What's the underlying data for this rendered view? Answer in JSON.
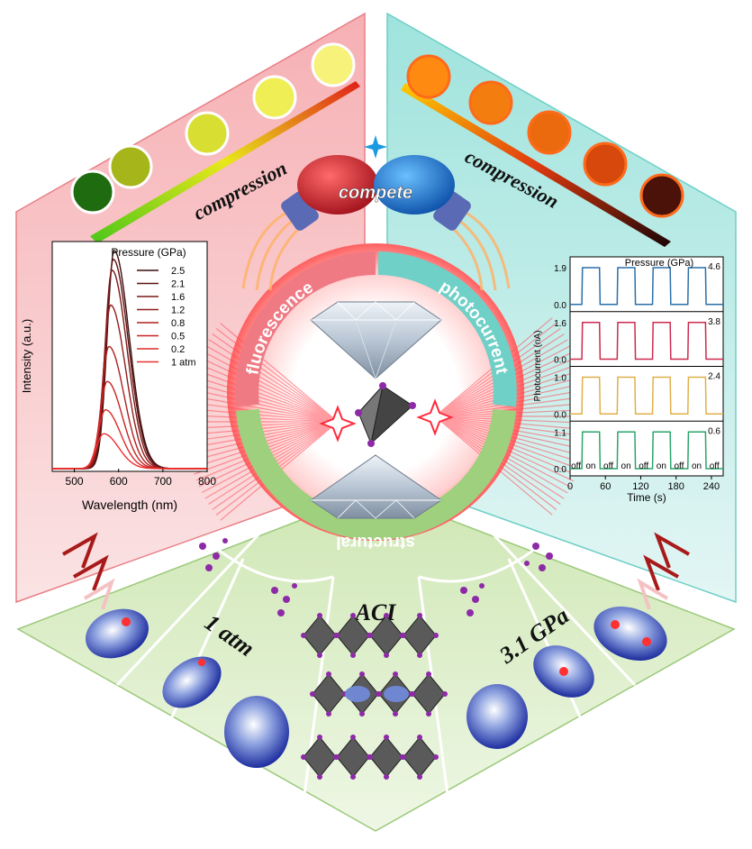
{
  "top_left": {
    "label": "compression",
    "dot_colors": [
      "#1f6b10",
      "#a6b51a",
      "#d8df32",
      "#efef55",
      "#f6f27a"
    ]
  },
  "top_right": {
    "label": "compression",
    "dot_colors": [
      "#ff8a12",
      "#f47d10",
      "#ec6a0e",
      "#d6480b",
      "#4a1208"
    ]
  },
  "center": {
    "compete": "compete",
    "left_arc": "fluorescence",
    "right_arc": "photocurrent",
    "bottom_arc": "structural"
  },
  "bottom": {
    "left_label": "1 atm",
    "center_label": "ACI",
    "right_label": "3.1 GPa"
  },
  "chart_data": [
    {
      "type": "line",
      "title": "",
      "xlabel": "Wavelength (nm)",
      "ylabel": "Intensity (a.u.)",
      "legend_title": "Pressure (GPa)",
      "legend_position": "top-right",
      "xlim": [
        450,
        800
      ],
      "x_ticks": [
        "500",
        "600",
        "700",
        "800"
      ],
      "x_tick_values": [
        500,
        600,
        700,
        800
      ],
      "series": [
        {
          "name": "2.5",
          "peak": 590,
          "height": 1.0,
          "color": "#3a0d0d"
        },
        {
          "name": "2.1",
          "peak": 588,
          "height": 0.96,
          "color": "#5e1414"
        },
        {
          "name": "1.6",
          "peak": 585,
          "height": 0.91,
          "color": "#7a1818"
        },
        {
          "name": "1.2",
          "peak": 582,
          "height": 0.75,
          "color": "#951c1c"
        },
        {
          "name": "0.8",
          "peak": 578,
          "height": 0.56,
          "color": "#b11f1f"
        },
        {
          "name": "0.5",
          "peak": 574,
          "height": 0.4,
          "color": "#c92323"
        },
        {
          "name": "0.2",
          "peak": 570,
          "height": 0.27,
          "color": "#dd2a2a"
        },
        {
          "name": "1 atm",
          "peak": 566,
          "height": 0.16,
          "color": "#ef3030"
        }
      ]
    },
    {
      "type": "line",
      "title": "",
      "xlabel": "Time (s)",
      "ylabel": "Photocurrent (nA)",
      "legend_title": "Pressure (GPa)",
      "xlim": [
        0,
        260
      ],
      "x_ticks": [
        "0",
        "60",
        "120",
        "180",
        "240"
      ],
      "x_tick_values": [
        0,
        60,
        120,
        180,
        240
      ],
      "cycle_labels": [
        "off",
        "on",
        "off",
        "on",
        "off",
        "on",
        "off",
        "on",
        "off"
      ],
      "panels": [
        {
          "pressure": "4.6",
          "on_value": 1.9,
          "ymax_label": "1.9",
          "ymin_label": "0.0",
          "color": "#2a6fa8"
        },
        {
          "pressure": "3.8",
          "on_value": 1.6,
          "ymax_label": "1.6",
          "ymin_label": "0.0",
          "color": "#cc2a4f"
        },
        {
          "pressure": "2.4",
          "on_value": 1.0,
          "ymax_label": "1.0",
          "ymin_label": "0.0",
          "color": "#e0b04a"
        },
        {
          "pressure": "0.6",
          "on_value": 1.1,
          "ymax_label": "1.1",
          "ymin_label": "0.0",
          "color": "#2aa56a"
        }
      ],
      "on_intervals": [
        [
          20,
          50
        ],
        [
          80,
          110
        ],
        [
          140,
          170
        ],
        [
          200,
          230
        ]
      ]
    }
  ]
}
